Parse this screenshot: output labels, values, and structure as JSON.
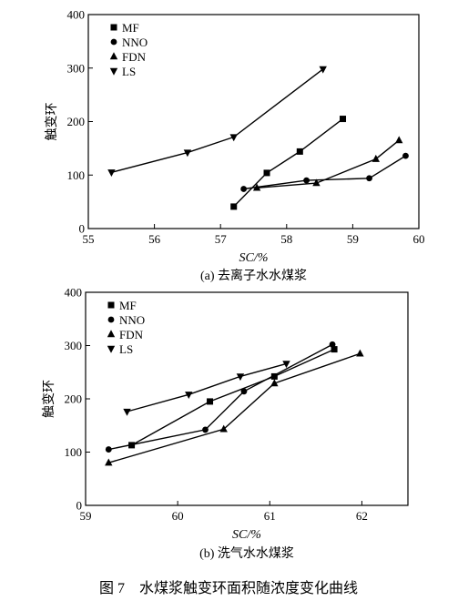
{
  "figure_caption": "图 7　水煤浆触变环面积随浓度变化曲线",
  "chart_data": [
    {
      "type": "line",
      "caption": "(a) 去离子水水煤浆",
      "xlabel": "SC/%",
      "ylabel": "触变环",
      "xlim": [
        55,
        60
      ],
      "ylim": [
        0,
        400
      ],
      "xticks": [
        55,
        56,
        57,
        58,
        59,
        60
      ],
      "yticks": [
        0,
        100,
        200,
        300,
        400
      ],
      "legend_position": "top-left",
      "series": [
        {
          "name": "MF",
          "marker": "square",
          "points": [
            [
              57.2,
              41
            ],
            [
              57.7,
              104
            ],
            [
              58.2,
              144
            ],
            [
              58.85,
              205
            ]
          ]
        },
        {
          "name": "NNO",
          "marker": "circle",
          "points": [
            [
              57.35,
              74
            ],
            [
              58.3,
              90
            ],
            [
              59.25,
              94
            ],
            [
              59.8,
              136
            ]
          ]
        },
        {
          "name": "FDN",
          "marker": "triangle-up",
          "points": [
            [
              57.55,
              76
            ],
            [
              58.45,
              85
            ],
            [
              59.35,
              130
            ],
            [
              59.7,
              165
            ]
          ]
        },
        {
          "name": "LS",
          "marker": "triangle-down",
          "points": [
            [
              55.35,
              105
            ],
            [
              56.5,
              142
            ],
            [
              57.2,
              171
            ],
            [
              58.55,
              298
            ]
          ]
        }
      ]
    },
    {
      "type": "line",
      "caption": "(b) 洗气水水煤浆",
      "xlabel": "SC/%",
      "ylabel": "触变环",
      "xlim": [
        59,
        62.5
      ],
      "ylim": [
        0,
        400
      ],
      "xticks": [
        59,
        60,
        61,
        62
      ],
      "yticks": [
        0,
        100,
        200,
        300,
        400
      ],
      "legend_position": "top-left",
      "series": [
        {
          "name": "MF",
          "marker": "square",
          "points": [
            [
              59.5,
              113
            ],
            [
              60.35,
              195
            ],
            [
              61.05,
              242
            ],
            [
              61.7,
              293
            ]
          ]
        },
        {
          "name": "NNO",
          "marker": "circle",
          "points": [
            [
              59.25,
              105
            ],
            [
              60.3,
              142
            ],
            [
              60.72,
              214
            ],
            [
              61.68,
              302
            ]
          ]
        },
        {
          "name": "FDN",
          "marker": "triangle-up",
          "points": [
            [
              59.25,
              80
            ],
            [
              60.5,
              143
            ],
            [
              61.05,
              229
            ],
            [
              61.98,
              285
            ]
          ]
        },
        {
          "name": "LS",
          "marker": "triangle-down",
          "points": [
            [
              59.45,
              176
            ],
            [
              60.12,
              208
            ],
            [
              60.68,
              242
            ],
            [
              61.18,
              266
            ]
          ]
        }
      ]
    }
  ]
}
